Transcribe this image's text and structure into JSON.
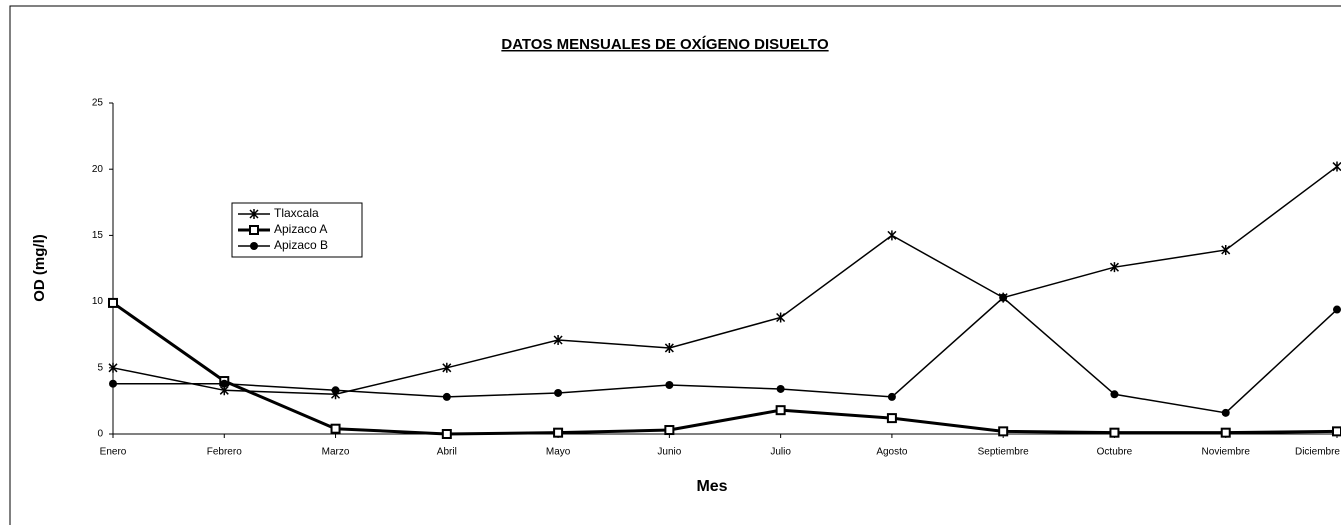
{
  "chart_data": {
    "type": "line",
    "title": "DATOS  MENSUALES  DE  OXÍGENO DISUELTO",
    "x_label": "Mes",
    "y_label": "OD  (mg/l)",
    "categories": [
      "Enero",
      "Febrero",
      "Marzo",
      "Abril",
      "Mayo",
      "Junio",
      "Julio",
      "Agosto",
      "Septiembre",
      "Octubre",
      "Noviembre",
      "Diciembre"
    ],
    "series": [
      {
        "name": "Tlaxcala",
        "color": "#000000",
        "marker": "x",
        "values": [
          5.0,
          3.3,
          3.0,
          5.0,
          7.1,
          6.5,
          8.8,
          15.0,
          10.3,
          12.6,
          13.9,
          20.2
        ]
      },
      {
        "name": "Apizaco A",
        "color": "#000000",
        "marker": "square",
        "values": [
          9.9,
          4.0,
          0.4,
          0.0,
          0.1,
          0.3,
          1.8,
          1.2,
          0.2,
          0.1,
          0.1,
          0.2
        ]
      },
      {
        "name": "Apizaco B",
        "color": "#000000",
        "marker": "circle",
        "values": [
          3.8,
          3.8,
          3.3,
          2.8,
          3.1,
          3.7,
          3.4,
          2.8,
          10.3,
          3.0,
          1.6,
          9.4
        ]
      }
    ],
    "ylim": [
      0,
      25
    ],
    "yticks": [
      0,
      5,
      10,
      15,
      20,
      25
    ],
    "grid": false
  }
}
